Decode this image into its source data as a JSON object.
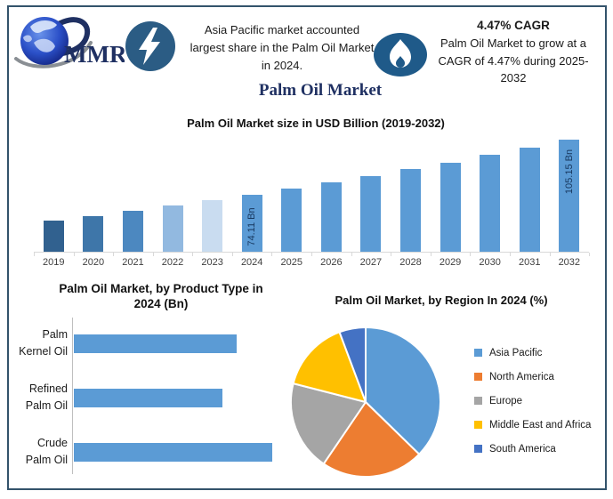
{
  "header": {
    "logo_text": "MMR",
    "note_left": "Asia Pacific market accounted largest share in the Palm Oil Market in 2024.",
    "cagr_title": "4.47% CAGR",
    "cagr_text": "Palm Oil Market to grow at a CAGR of 4.47% during 2025-2032",
    "title": "Palm Oil Market"
  },
  "colors": {
    "frame_border": "#33536B",
    "title_navy": "#1F3062",
    "badge_blue": "#2B5C84",
    "flame_badge_blue": "#1F5A89",
    "bar_blue": "#5B9BD5",
    "value_label_navy": "#17375E",
    "axis_gray": "#D9D9D9"
  },
  "chart_data": [
    {
      "id": "market-size",
      "type": "bar",
      "title": "Palm Oil Market size in USD Billion (2019-2032)",
      "categories": [
        "2019",
        "2020",
        "2021",
        "2022",
        "2023",
        "2024",
        "2025",
        "2026",
        "2027",
        "2028",
        "2029",
        "2030",
        "2031",
        "2032"
      ],
      "values": [
        59.6,
        62.2,
        65.0,
        67.9,
        70.9,
        74.11,
        77.4,
        80.9,
        84.5,
        88.3,
        92.2,
        96.3,
        100.7,
        105.15
      ],
      "bar_labels": {
        "2024": "74.11 Bn",
        "2032": "105.15 Bn"
      },
      "bar_colors": [
        "#31618F",
        "#3E76A9",
        "#4C88C0",
        "#92B9E0",
        "#C9DCF0",
        "#5B9BD5",
        "#5B9BD5",
        "#5B9BD5",
        "#5B9BD5",
        "#5B9BD5",
        "#5B9BD5",
        "#5B9BD5",
        "#5B9BD5",
        "#5B9BD5"
      ],
      "unit": "USD Billion",
      "xlabel": "",
      "ylabel": "",
      "ylim": [
        42,
        112
      ],
      "grid": false
    },
    {
      "id": "product-type",
      "type": "bar",
      "orientation": "horizontal",
      "title": "Palm Oil Market, by Product Type in 2024 (Bn)",
      "title_lines": [
        "Palm Oil Market, by Product Type in",
        "2024 (Bn)"
      ],
      "categories": [
        "Palm Kernel Oil",
        "Refined Palm Oil",
        "Crude Palm Oil"
      ],
      "category_lines": [
        [
          "Palm",
          "Kernel Oil"
        ],
        [
          "Refined",
          "Palm Oil"
        ],
        [
          "Crude",
          "Palm Oil"
        ]
      ],
      "values": [
        29.5,
        27,
        36
      ],
      "xlim": [
        0,
        40
      ],
      "bar_color": "#5B9BD5",
      "grid": false
    },
    {
      "id": "region-share",
      "type": "pie",
      "title": "Palm Oil Market, by Region In 2024 (%)",
      "legend_position": "right",
      "slices": [
        {
          "label": "Asia Pacific",
          "value": 37.3,
          "color": "#5B9BD5"
        },
        {
          "label": "North America",
          "value": 22.2,
          "color": "#ED7D31"
        },
        {
          "label": "Europe",
          "value": 19.5,
          "color": "#A5A5A5"
        },
        {
          "label": "Middle East and Africa",
          "value": 15.3,
          "color": "#FFC000"
        },
        {
          "label": "South America",
          "value": 5.7,
          "color": "#4472C4"
        }
      ]
    }
  ]
}
